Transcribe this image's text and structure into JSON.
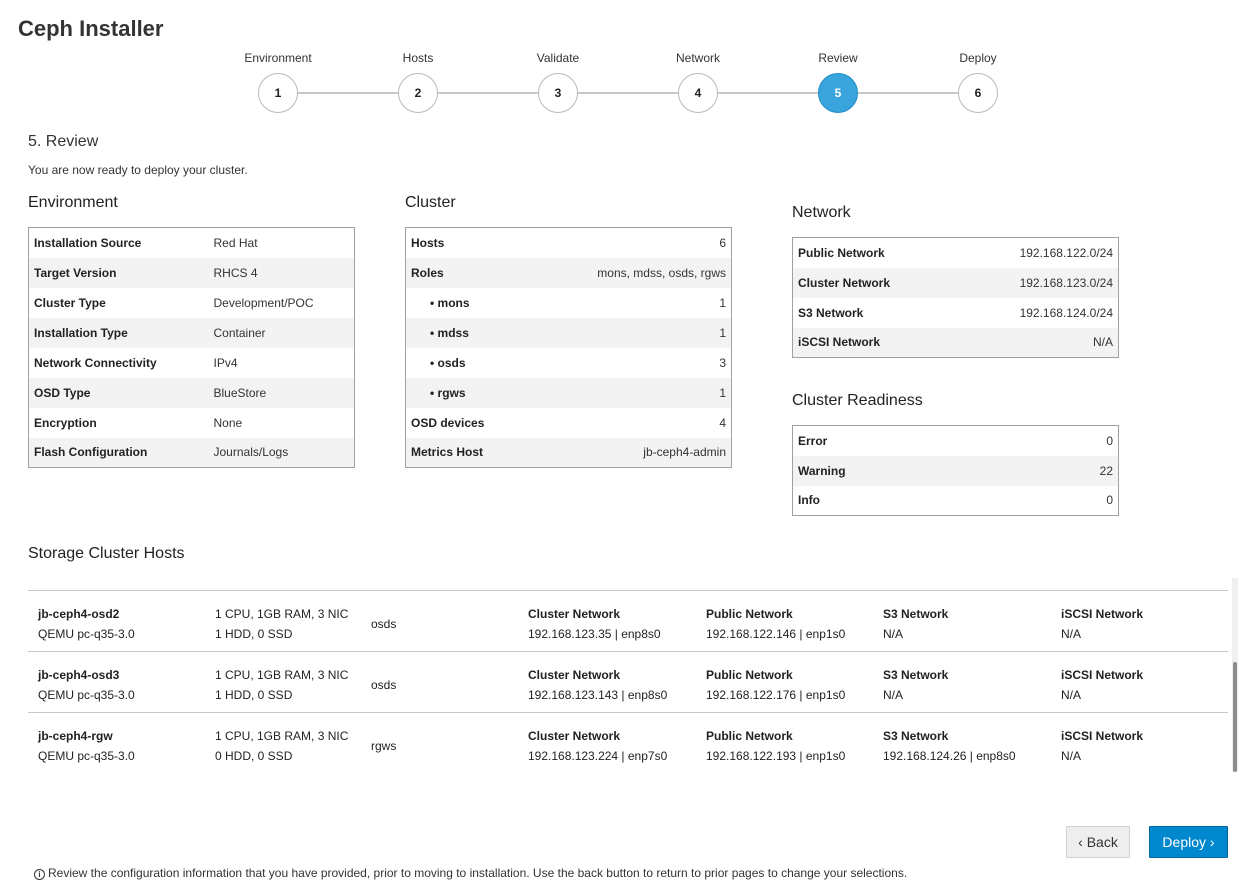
{
  "app_title": "Ceph Installer",
  "steps": [
    {
      "label": "Environment",
      "number": "1"
    },
    {
      "label": "Hosts",
      "number": "2"
    },
    {
      "label": "Validate",
      "number": "3"
    },
    {
      "label": "Network",
      "number": "4"
    },
    {
      "label": "Review",
      "number": "5"
    },
    {
      "label": "Deploy",
      "number": "6"
    }
  ],
  "active_step": 5,
  "accent_color": "#39a5dc",
  "review": {
    "heading": "5. Review",
    "description": "You are now ready to deploy your cluster."
  },
  "environment": {
    "title": "Environment",
    "rows": [
      {
        "k": "Installation Source",
        "v": "Red Hat"
      },
      {
        "k": "Target Version",
        "v": "RHCS 4"
      },
      {
        "k": "Cluster Type",
        "v": "Development/POC"
      },
      {
        "k": "Installation Type",
        "v": "Container"
      },
      {
        "k": "Network Connectivity",
        "v": "IPv4"
      },
      {
        "k": "OSD Type",
        "v": "BlueStore"
      },
      {
        "k": "Encryption",
        "v": "None"
      },
      {
        "k": "Flash Configuration",
        "v": "Journals/Logs"
      }
    ]
  },
  "cluster": {
    "title": "Cluster",
    "rows": [
      {
        "k": "Hosts",
        "v": "6"
      },
      {
        "k": "Roles",
        "v": "mons, mdss, osds, rgws"
      },
      {
        "k": "• mons",
        "v": "1"
      },
      {
        "k": "• mdss",
        "v": "1"
      },
      {
        "k": "• osds",
        "v": "3"
      },
      {
        "k": "• rgws",
        "v": "1"
      },
      {
        "k": "OSD devices",
        "v": "4"
      },
      {
        "k": "Metrics Host",
        "v": "jb-ceph4-admin"
      }
    ]
  },
  "network": {
    "title": "Network",
    "rows": [
      {
        "k": "Public Network",
        "v": "192.168.122.0/24"
      },
      {
        "k": "Cluster Network",
        "v": "192.168.123.0/24"
      },
      {
        "k": "S3 Network",
        "v": "192.168.124.0/24"
      },
      {
        "k": "iSCSI Network",
        "v": "N/A"
      }
    ]
  },
  "readiness": {
    "title": "Cluster Readiness",
    "rows": [
      {
        "k": "Error",
        "v": "0"
      },
      {
        "k": "Warning",
        "v": "22"
      },
      {
        "k": "Info",
        "v": "0"
      }
    ]
  },
  "hosts": {
    "title": "Storage Cluster Hosts",
    "labels": {
      "cluster": "Cluster Network",
      "public": "Public Network",
      "s3": "S3 Network",
      "iscsi": "iSCSI Network"
    },
    "rows": [
      {
        "name": "jb-ceph4-osd2",
        "model": "QEMU pc-q35-3.0",
        "spec1": "1 CPU, 1GB RAM, 3 NIC",
        "spec2": "1 HDD, 0 SSD",
        "role": "osds",
        "cluster": "192.168.123.35 | enp8s0",
        "public": "192.168.122.146 | enp1s0",
        "s3": "N/A",
        "iscsi": "N/A"
      },
      {
        "name": "jb-ceph4-osd3",
        "model": "QEMU pc-q35-3.0",
        "spec1": "1 CPU, 1GB RAM, 3 NIC",
        "spec2": "1 HDD, 0 SSD",
        "role": "osds",
        "cluster": "192.168.123.143 | enp8s0",
        "public": "192.168.122.176 | enp1s0",
        "s3": "N/A",
        "iscsi": "N/A"
      },
      {
        "name": "jb-ceph4-rgw",
        "model": "QEMU pc-q35-3.0",
        "spec1": "1 CPU, 1GB RAM, 3 NIC",
        "spec2": "0 HDD, 0 SSD",
        "role": "rgws",
        "cluster": "192.168.123.224 | enp7s0",
        "public": "192.168.122.193 | enp1s0",
        "s3": "192.168.124.26 | enp8s0",
        "iscsi": "N/A"
      }
    ]
  },
  "buttons": {
    "back": "‹ Back",
    "deploy": "Deploy ›"
  },
  "footer": {
    "icon": "info-icon",
    "note": "Review the configuration information that you have provided, prior to moving to installation. Use the back button to return to prior pages to change your selections."
  }
}
